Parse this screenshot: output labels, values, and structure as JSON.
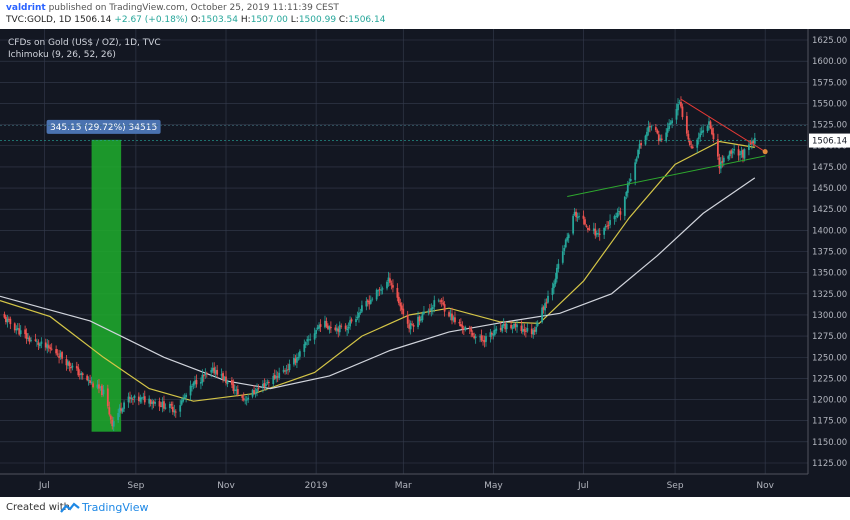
{
  "header": {
    "author": "valdrint",
    "published": "published on TradingView.com, October 25, 2019 11:11:39 CEST",
    "symbol": "TVC:GOLD, 1D",
    "last": "1506.14",
    "change": "+2.67 (+0.18%)",
    "ohlc": {
      "o_label": "O:",
      "o": "1503.54",
      "h_label": "H:",
      "h": "1507.00",
      "l_label": "L:",
      "l": "1500.99",
      "c_label": "C:",
      "c": "1506.14"
    }
  },
  "footer": {
    "created": "Created with",
    "brand": "TradingView"
  },
  "colors": {
    "background": "#131722",
    "grid": "#363c4e",
    "up": "#26a69a",
    "down": "#ef5350",
    "ma_fast": "#d4c547",
    "ma_slow": "#d1d4dc",
    "measure_fill": "#1fae2d",
    "measure_label": "#4a72b0",
    "trend_down": "#e53935",
    "trend_up": "#2ea82e",
    "price_line": "#26a69a",
    "price_label": "#ffffff"
  },
  "chart_data": {
    "type": "candlestick",
    "legend": [
      "CFDs on Gold (US$ / OZ), 1D, TVC",
      "Ichimoku (9, 26, 52, 26)"
    ],
    "x_ticks": [
      "Jul",
      "Sep",
      "Nov",
      "2019",
      "Mar",
      "May",
      "Jul",
      "Sep",
      "Nov"
    ],
    "x_tick_dates": [
      "2018-07-01",
      "2018-09-01",
      "2018-11-01",
      "2019-01-01",
      "2019-03-01",
      "2019-05-01",
      "2019-07-01",
      "2019-09-01",
      "2019-11-01"
    ],
    "x_range": [
      "2018-06-01",
      "2019-11-30"
    ],
    "y_ticks": [
      1125,
      1150,
      1175,
      1200,
      1225,
      1250,
      1275,
      1300,
      1325,
      1350,
      1375,
      1400,
      1425,
      1450,
      1475,
      1500,
      1525,
      1550,
      1575,
      1600,
      1625
    ],
    "ylim": [
      1112,
      1638
    ],
    "current_price": 1506.14,
    "current_price_label": "1506.14",
    "anchor_points": [
      {
        "date": "2018-06-01",
        "close": 1300
      },
      {
        "date": "2018-06-20",
        "close": 1272
      },
      {
        "date": "2018-07-10",
        "close": 1255
      },
      {
        "date": "2018-07-25",
        "close": 1230
      },
      {
        "date": "2018-08-10",
        "close": 1208
      },
      {
        "date": "2018-08-16",
        "close": 1172
      },
      {
        "date": "2018-08-25",
        "close": 1200
      },
      {
        "date": "2018-09-10",
        "close": 1200
      },
      {
        "date": "2018-09-28",
        "close": 1188
      },
      {
        "date": "2018-10-12",
        "close": 1222
      },
      {
        "date": "2018-10-25",
        "close": 1235
      },
      {
        "date": "2018-11-13",
        "close": 1200
      },
      {
        "date": "2018-11-30",
        "close": 1222
      },
      {
        "date": "2018-12-15",
        "close": 1240
      },
      {
        "date": "2019-01-04",
        "close": 1290
      },
      {
        "date": "2019-01-20",
        "close": 1283
      },
      {
        "date": "2019-02-05",
        "close": 1315
      },
      {
        "date": "2019-02-20",
        "close": 1342
      },
      {
        "date": "2019-03-05",
        "close": 1285
      },
      {
        "date": "2019-03-25",
        "close": 1318
      },
      {
        "date": "2019-04-05",
        "close": 1292
      },
      {
        "date": "2019-04-23",
        "close": 1270
      },
      {
        "date": "2019-05-10",
        "close": 1287
      },
      {
        "date": "2019-05-28",
        "close": 1280
      },
      {
        "date": "2019-06-10",
        "close": 1335
      },
      {
        "date": "2019-06-25",
        "close": 1420
      },
      {
        "date": "2019-07-10",
        "close": 1395
      },
      {
        "date": "2019-07-26",
        "close": 1420
      },
      {
        "date": "2019-08-07",
        "close": 1495
      },
      {
        "date": "2019-08-15",
        "close": 1525
      },
      {
        "date": "2019-08-23",
        "close": 1505
      },
      {
        "date": "2019-09-04",
        "close": 1550
      },
      {
        "date": "2019-09-12",
        "close": 1498
      },
      {
        "date": "2019-09-24",
        "close": 1530
      },
      {
        "date": "2019-10-01",
        "close": 1478
      },
      {
        "date": "2019-10-10",
        "close": 1495
      },
      {
        "date": "2019-10-17",
        "close": 1490
      },
      {
        "date": "2019-10-25",
        "close": 1506
      }
    ],
    "moving_averages": [
      {
        "role": "fast",
        "points": [
          {
            "date": "2018-06-01",
            "value": 1317
          },
          {
            "date": "2018-07-05",
            "value": 1298
          },
          {
            "date": "2018-08-10",
            "value": 1250
          },
          {
            "date": "2018-09-10",
            "value": 1213
          },
          {
            "date": "2018-10-10",
            "value": 1198
          },
          {
            "date": "2018-11-20",
            "value": 1207
          },
          {
            "date": "2018-12-31",
            "value": 1232
          },
          {
            "date": "2019-02-01",
            "value": 1275
          },
          {
            "date": "2019-03-05",
            "value": 1300
          },
          {
            "date": "2019-04-01",
            "value": 1308
          },
          {
            "date": "2019-05-05",
            "value": 1292
          },
          {
            "date": "2019-06-01",
            "value": 1290
          },
          {
            "date": "2019-07-01",
            "value": 1340
          },
          {
            "date": "2019-08-01",
            "value": 1415
          },
          {
            "date": "2019-09-01",
            "value": 1478
          },
          {
            "date": "2019-10-01",
            "value": 1505
          },
          {
            "date": "2019-10-25",
            "value": 1498
          }
        ]
      },
      {
        "role": "slow",
        "points": [
          {
            "date": "2018-06-01",
            "value": 1322
          },
          {
            "date": "2018-08-01",
            "value": 1293
          },
          {
            "date": "2018-09-20",
            "value": 1250
          },
          {
            "date": "2018-11-01",
            "value": 1222
          },
          {
            "date": "2018-12-01",
            "value": 1213
          },
          {
            "date": "2019-01-10",
            "value": 1228
          },
          {
            "date": "2019-02-20",
            "value": 1258
          },
          {
            "date": "2019-04-01",
            "value": 1280
          },
          {
            "date": "2019-05-10",
            "value": 1292
          },
          {
            "date": "2019-06-15",
            "value": 1302
          },
          {
            "date": "2019-07-20",
            "value": 1325
          },
          {
            "date": "2019-08-20",
            "value": 1370
          },
          {
            "date": "2019-09-20",
            "value": 1420
          },
          {
            "date": "2019-10-25",
            "value": 1462
          }
        ]
      }
    ],
    "drawings": {
      "measure": {
        "from_date": "2018-08-02",
        "to_date": "2018-08-22",
        "from_price": 1162,
        "to_price": 1507,
        "label": "345.15 (29.72%) 34515"
      },
      "descending_trendline": {
        "from": {
          "date": "2019-09-05",
          "price": 1555
        },
        "to": {
          "date": "2019-11-01",
          "price": 1493
        }
      },
      "ascending_trendline": {
        "from": {
          "date": "2019-06-20",
          "price": 1440
        },
        "to": {
          "date": "2019-11-01",
          "price": 1488
        }
      },
      "horizontal_line": {
        "price": 1524
      }
    }
  }
}
